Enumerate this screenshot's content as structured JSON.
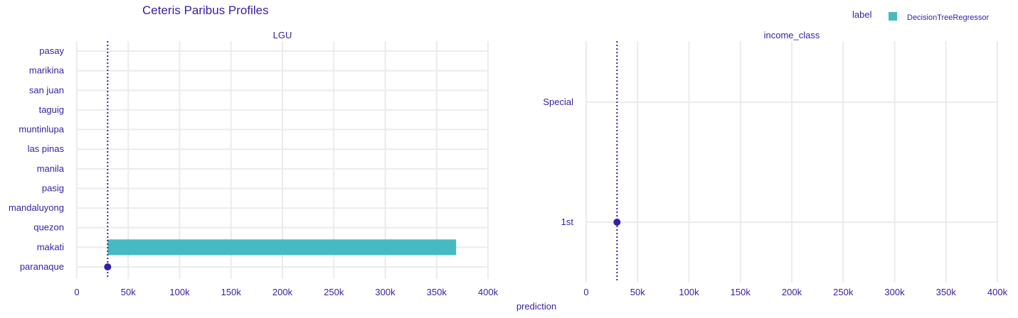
{
  "title": "Ceteris Paribus Profiles",
  "legend": {
    "title": "label",
    "items": [
      {
        "name": "DecisionTreeRegressor",
        "color": "#46bac2"
      }
    ],
    "position": "top-right"
  },
  "x_axis_label": "prediction",
  "colors": {
    "text": "#371ea3",
    "bar": "#46bac2",
    "point": "#371ea3",
    "grid": "#ebebeb",
    "reference_line": "#371ea3"
  },
  "chart_data": [
    {
      "type": "bar",
      "orientation": "horizontal",
      "panel_title": "LGU",
      "categories": [
        "pasay",
        "marikina",
        "san juan",
        "taguig",
        "muntinlupa",
        "las pinas",
        "manila",
        "pasig",
        "mandaluyong",
        "quezon",
        "makati",
        "paranaque"
      ],
      "baseline": 30000,
      "bar_values": {
        "makati": 369000
      },
      "observation": {
        "category": "paranaque",
        "value": 30000
      },
      "reference_line": 30000,
      "xlim": [
        0,
        400000
      ],
      "x_ticks": [
        0,
        50000,
        100000,
        150000,
        200000,
        250000,
        300000,
        350000,
        400000
      ],
      "x_tick_labels": [
        "0",
        "50k",
        "100k",
        "150k",
        "200k",
        "250k",
        "300k",
        "350k",
        "400k"
      ],
      "grid": true
    },
    {
      "type": "bar",
      "orientation": "horizontal",
      "panel_title": "income_class",
      "categories": [
        "Special",
        "1st"
      ],
      "baseline": 30000,
      "bar_values": {},
      "observation": {
        "category": "1st",
        "value": 30000
      },
      "reference_line": 30000,
      "xlim": [
        0,
        400000
      ],
      "x_ticks": [
        0,
        50000,
        100000,
        150000,
        200000,
        250000,
        300000,
        350000,
        400000
      ],
      "x_tick_labels": [
        "0",
        "50k",
        "100k",
        "150k",
        "200k",
        "250k",
        "300k",
        "350k",
        "400k"
      ],
      "grid": true
    }
  ]
}
